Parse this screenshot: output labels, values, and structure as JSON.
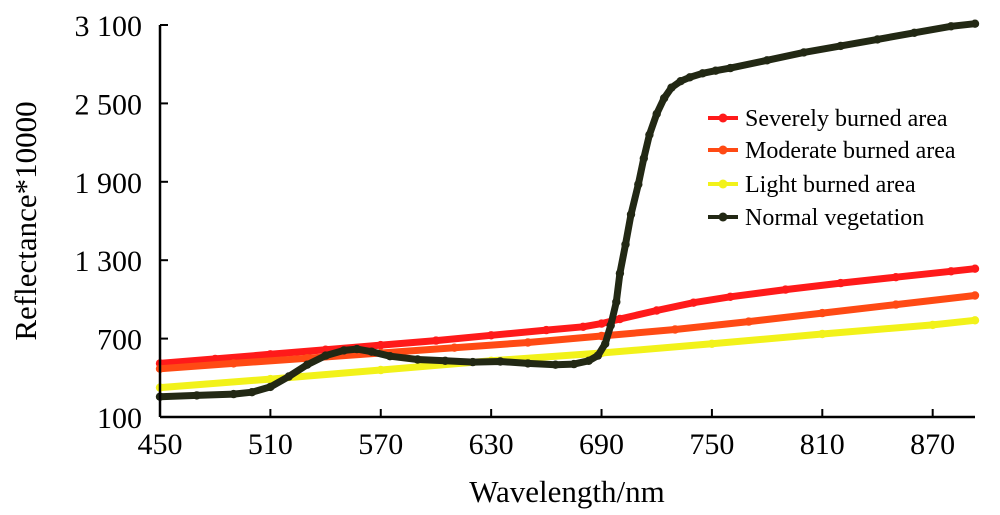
{
  "chart_data": {
    "type": "line",
    "title": "",
    "xlabel": "Wavelength/nm",
    "ylabel": "Reflectance*10000",
    "xlim": [
      450,
      893
    ],
    "ylim": [
      100,
      3100
    ],
    "x_ticks": [
      450,
      510,
      570,
      630,
      690,
      750,
      810,
      870
    ],
    "x_tick_labels": [
      "450",
      "510",
      "570",
      "630",
      "690",
      "750",
      "810",
      "870"
    ],
    "y_ticks": [
      100,
      700,
      1300,
      1900,
      2500,
      3100
    ],
    "y_tick_labels": [
      "100",
      "700",
      "1 300",
      "1 900",
      "2 500",
      "3 100"
    ],
    "grid": false,
    "legend_position": "right",
    "series": [
      {
        "name": "Severely burned area",
        "color": "#ff1a1a",
        "x": [
          450,
          480,
          510,
          540,
          570,
          600,
          630,
          660,
          680,
          690,
          700,
          720,
          740,
          760,
          790,
          820,
          850,
          880,
          893
        ],
        "y": [
          510,
          545,
          580,
          615,
          650,
          685,
          725,
          765,
          790,
          815,
          850,
          915,
          975,
          1020,
          1075,
          1125,
          1170,
          1215,
          1235
        ]
      },
      {
        "name": "Moderate burned area",
        "color": "#ff4a14",
        "x": [
          450,
          490,
          530,
          570,
          610,
          650,
          690,
          730,
          770,
          810,
          850,
          893
        ],
        "y": [
          470,
          510,
          550,
          590,
          630,
          670,
          720,
          770,
          830,
          895,
          960,
          1030
        ]
      },
      {
        "name": "Light burned area",
        "color": "#f2f21a",
        "x": [
          450,
          510,
          570,
          630,
          690,
          750,
          810,
          870,
          893
        ],
        "y": [
          325,
          390,
          460,
          530,
          590,
          660,
          735,
          805,
          840
        ]
      },
      {
        "name": "Normal vegetation",
        "color": "#222814",
        "x": [
          450,
          470,
          490,
          500,
          510,
          520,
          530,
          540,
          550,
          557,
          565,
          575,
          590,
          605,
          620,
          635,
          650,
          665,
          675,
          683,
          688,
          692,
          695,
          698,
          700,
          703,
          706,
          710,
          713,
          716,
          720,
          724,
          728,
          733,
          738,
          745,
          752,
          760,
          780,
          800,
          820,
          840,
          860,
          880,
          893
        ],
        "y": [
          255,
          265,
          275,
          290,
          330,
          410,
          500,
          570,
          610,
          620,
          600,
          565,
          540,
          530,
          520,
          525,
          510,
          500,
          505,
          530,
          570,
          660,
          800,
          980,
          1200,
          1420,
          1650,
          1880,
          2080,
          2260,
          2420,
          2540,
          2620,
          2670,
          2700,
          2730,
          2750,
          2770,
          2830,
          2890,
          2940,
          2990,
          3040,
          3090,
          3110
        ]
      }
    ]
  }
}
